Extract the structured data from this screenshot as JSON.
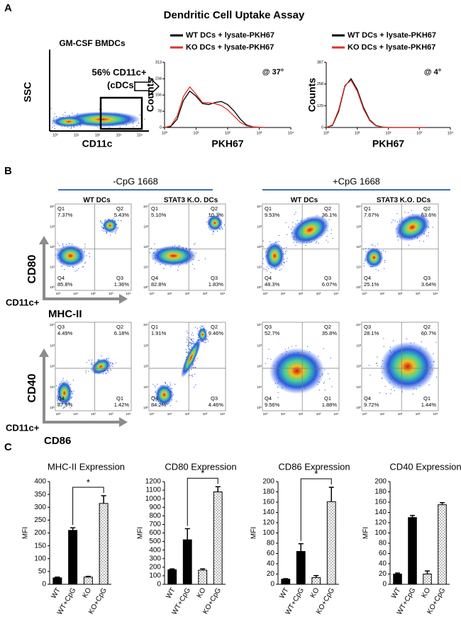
{
  "panel_a": {
    "label": "A",
    "title": "Dendritic Cell Uptake Assay",
    "dotplot": {
      "title": "GM-CSF BMDCs",
      "gate_label": "56% CD11c+",
      "gate_sublabel": "(cDCs)",
      "xlabel": "CD11c",
      "ylabel": "SSC",
      "xticks": [
        {
          "value": 0,
          "label": "10⁰"
        },
        {
          "value": 1,
          "label": "10¹"
        },
        {
          "value": 2,
          "label": "10²"
        },
        {
          "value": 3,
          "label": "10³"
        },
        {
          "value": 4,
          "label": "10⁴"
        }
      ]
    }
  },
  "panel_b": {
    "label": "B",
    "groups": [
      {
        "title": "-CpG 1668",
        "columns": [
          "WT DCs",
          "STAT3  K.O. DCs"
        ]
      },
      {
        "title": "+CpG 1668",
        "columns": [
          "WT DCs",
          "STAT3  K.O. DCs"
        ]
      }
    ],
    "flow_ticks": [
      {
        "value": 0,
        "label": "10⁰"
      },
      {
        "value": 1,
        "label": "10¹"
      },
      {
        "value": 2,
        "label": "10²"
      },
      {
        "value": 3,
        "label": "10³"
      },
      {
        "value": 4,
        "label": "10⁴"
      }
    ],
    "rows": [
      {
        "ylabel": "CD80",
        "gate": "CD11c+",
        "xlabel": "MHC-II",
        "plots": [
          {
            "quadrants": [
              {
                "name": "Q1",
                "value": "7.37%"
              },
              {
                "name": "Q2",
                "value": "5.43%"
              },
              {
                "name": "Q4",
                "value": "85.8%"
              },
              {
                "name": "Q3",
                "value": "1.36%"
              }
            ]
          },
          {
            "quadrants": [
              {
                "name": "Q1",
                "value": "5.10%"
              },
              {
                "name": "Q2",
                "value": "10.3%"
              },
              {
                "name": "Q4",
                "value": "82.8%"
              },
              {
                "name": "Q3",
                "value": "1.83%"
              }
            ]
          },
          {
            "quadrants": [
              {
                "name": "Q1",
                "value": "9.53%"
              },
              {
                "name": "Q2",
                "value": "36.1%"
              },
              {
                "name": "Q4",
                "value": "48.3%"
              },
              {
                "name": "Q3",
                "value": "6.07%"
              }
            ]
          },
          {
            "quadrants": [
              {
                "name": "Q1",
                "value": "7.67%"
              },
              {
                "name": "Q2",
                "value": "63.6%"
              },
              {
                "name": "Q4",
                "value": "25.1%"
              },
              {
                "name": "Q3",
                "value": "3.64%"
              }
            ]
          }
        ]
      },
      {
        "ylabel": "CD40",
        "gate": "CD11c+",
        "xlabel": "CD86",
        "plots": [
          {
            "quadrants": [
              {
                "name": "Q3",
                "value": "4.49%"
              },
              {
                "name": "Q2",
                "value": "6.18%"
              },
              {
                "name": "Q4",
                "value": "87.9%"
              },
              {
                "name": "Q1",
                "value": "1.42%"
              }
            ]
          },
          {
            "quadrants": [
              {
                "name": "Q1",
                "value": "1.91%"
              },
              {
                "name": "Q2",
                "value": "9.46%"
              },
              {
                "name": "Q4",
                "value": "84.2%"
              },
              {
                "name": "Q3",
                "value": "4.46%"
              }
            ]
          },
          {
            "quadrants": [
              {
                "name": "Q3",
                "value": "52.7%"
              },
              {
                "name": "Q2",
                "value": "35.8%"
              },
              {
                "name": "Q4",
                "value": "9.56%"
              },
              {
                "name": "Q1",
                "value": "1.88%"
              }
            ]
          },
          {
            "quadrants": [
              {
                "name": "Q3",
                "value": "28.1%"
              },
              {
                "name": "Q2",
                "value": "60.7%"
              },
              {
                "name": "Q4",
                "value": "9.72%"
              },
              {
                "name": "Q1",
                "value": "1.44%"
              }
            ]
          }
        ]
      }
    ]
  },
  "panel_c": {
    "label": "C",
    "bar_styles": [
      "solid",
      "solid",
      "dotted",
      "dotted"
    ]
  },
  "chart_data": [
    {
      "type": "line",
      "annotation": "@ 37°",
      "ylabel": "Counts",
      "xlabel": "PKH67",
      "x": [
        0,
        0.2,
        0.4,
        0.6,
        0.8,
        1.0,
        1.2,
        1.4,
        1.6,
        1.8,
        2.0,
        2.2,
        2.4,
        2.6,
        2.8,
        3.0,
        3.2
      ],
      "series": [
        {
          "name": "WT DCs + lysate-PKH67",
          "color": "#000000",
          "values": [
            0,
            5,
            40,
            130,
            175,
            150,
            115,
            110,
            120,
            125,
            110,
            80,
            40,
            12,
            3,
            1,
            0
          ]
        },
        {
          "name": "KO DCs  + lysate-PKH67",
          "color": "#e0302a",
          "values": [
            0,
            8,
            55,
            150,
            195,
            160,
            120,
            118,
            115,
            105,
            85,
            55,
            25,
            8,
            2,
            0,
            0
          ]
        }
      ],
      "xlim": [
        0,
        4
      ],
      "xticks": [
        {
          "value": 0,
          "label": "10⁰"
        },
        {
          "value": 1,
          "label": "10¹"
        },
        {
          "value": 2,
          "label": "10²"
        },
        {
          "value": 3,
          "label": "10³"
        },
        {
          "value": 4,
          "label": "10⁴"
        }
      ],
      "ylim": [
        0,
        313
      ],
      "yticks": [
        0,
        78,
        156,
        234,
        313
      ]
    },
    {
      "type": "line",
      "annotation": "@ 4°",
      "ylabel": "Counts",
      "xlabel": "PKH67",
      "x": [
        0,
        0.2,
        0.4,
        0.6,
        0.8,
        1.0,
        1.2,
        1.4,
        1.6,
        1.8,
        2.0,
        2.2,
        2.4,
        2.6,
        2.8,
        3.0,
        3.2
      ],
      "series": [
        {
          "name": "WT DCs + lysate-PKH67",
          "color": "#000000",
          "values": [
            0,
            12,
            95,
            245,
            290,
            225,
            120,
            45,
            12,
            3,
            0,
            0,
            0,
            0,
            0,
            0,
            0
          ]
        },
        {
          "name": "KO  DCs + lysate-PKH67",
          "color": "#e0302a",
          "values": [
            0,
            15,
            105,
            250,
            280,
            215,
            110,
            40,
            10,
            2,
            0,
            0,
            0,
            0,
            0,
            0,
            0
          ]
        }
      ],
      "xlim": [
        0,
        4
      ],
      "xticks": [
        {
          "value": 0,
          "label": "10⁰"
        },
        {
          "value": 1,
          "label": "10¹"
        },
        {
          "value": 2,
          "label": "10²"
        },
        {
          "value": 3,
          "label": "10³"
        },
        {
          "value": 4,
          "label": "10⁴"
        }
      ],
      "ylim": [
        0,
        387
      ],
      "yticks": [
        0,
        129,
        258,
        387
      ]
    },
    {
      "type": "bar",
      "title": "MHC-II Expression",
      "ylabel": "MFI",
      "categories": [
        "WT",
        "WT+CpG",
        "KO",
        "KO+CpG"
      ],
      "values": [
        25,
        210,
        28,
        315
      ],
      "errors": [
        3,
        10,
        3,
        30
      ],
      "color": "#000000",
      "ylim": [
        0,
        400
      ],
      "yticks": [
        0,
        50,
        100,
        150,
        200,
        250,
        300,
        350,
        400
      ],
      "significance": {
        "label": "*",
        "between": [
          1,
          3
        ]
      }
    },
    {
      "type": "bar",
      "title": "CD80 Expression",
      "ylabel": "MFI",
      "categories": [
        "WT",
        "WT+CpG",
        "KO",
        "KO+CpG"
      ],
      "values": [
        170,
        520,
        165,
        1080
      ],
      "errors": [
        10,
        130,
        15,
        60
      ],
      "color": "#000000",
      "ylim": [
        0,
        1200
      ],
      "yticks": [
        0,
        100,
        200,
        300,
        400,
        500,
        600,
        700,
        800,
        900,
        1000,
        1100,
        1200
      ],
      "significance": {
        "label": "*",
        "between": [
          1,
          3
        ]
      }
    },
    {
      "type": "bar",
      "title": "CD86 Expression",
      "ylabel": "MFI",
      "categories": [
        "WT",
        "WT+CpG",
        "KO",
        "KO+CpG"
      ],
      "values": [
        10,
        64,
        13,
        161
      ],
      "errors": [
        1,
        15,
        4,
        28
      ],
      "color": "#000000",
      "ylim": [
        0,
        200
      ],
      "yticks": [
        0,
        20,
        40,
        60,
        80,
        100,
        120,
        140,
        160,
        180,
        200
      ],
      "significance": {
        "label": "*",
        "between": [
          1,
          3
        ]
      }
    },
    {
      "type": "bar",
      "title": "CD40 Expression",
      "ylabel": "MFI",
      "categories": [
        "WT",
        "WT+CpG",
        "KO",
        "KO+CpG"
      ],
      "values": [
        20,
        130,
        20,
        155
      ],
      "errors": [
        2,
        4,
        6,
        4
      ],
      "color": "#000000",
      "ylim": [
        0,
        200
      ],
      "yticks": [
        0,
        20,
        40,
        60,
        80,
        100,
        120,
        140,
        160,
        180,
        200
      ]
    }
  ]
}
